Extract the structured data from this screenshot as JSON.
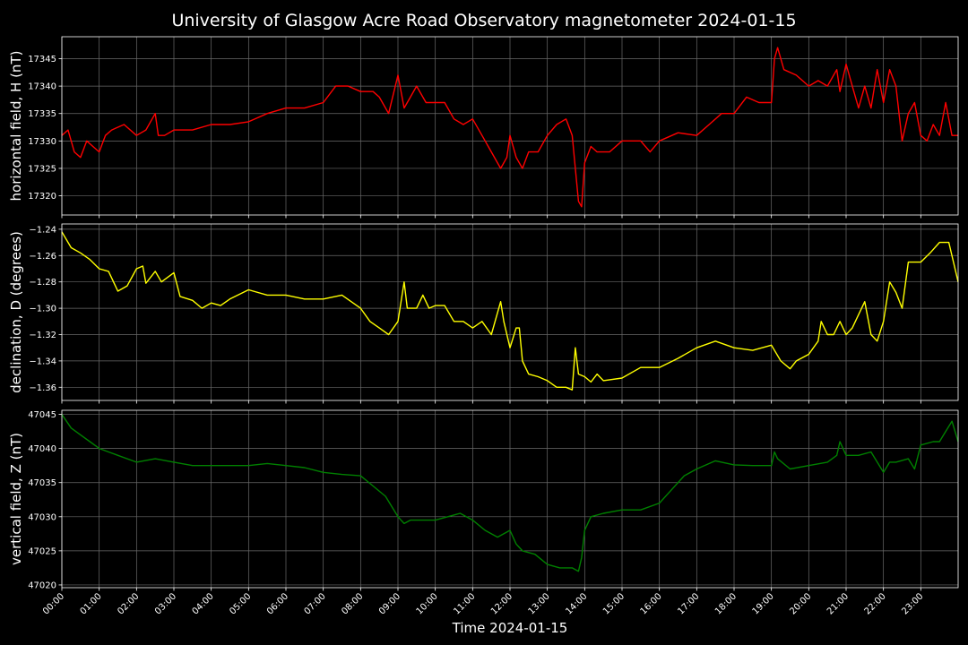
{
  "chart_data": {
    "type": "line",
    "title": "University of Glasgow Acre Road Observatory magnetometer 2024-01-15",
    "xlabel": "Time 2024-01-15",
    "x_ticks": [
      "00:00",
      "01:00",
      "02:00",
      "03:00",
      "04:00",
      "05:00",
      "06:00",
      "07:00",
      "08:00",
      "09:00",
      "10:00",
      "11:00",
      "12:00",
      "13:00",
      "14:00",
      "15:00",
      "16:00",
      "17:00",
      "18:00",
      "19:00",
      "20:00",
      "21:00",
      "22:00",
      "23:00"
    ],
    "xlim": [
      "00:00",
      "24:00"
    ],
    "background": "#000000",
    "grid": true,
    "panels": [
      {
        "ylabel": "horizontal field, H (nT)",
        "color": "#ff0000",
        "ylim": [
          17316.5,
          17349
        ],
        "yticks": [
          17320,
          17325,
          17330,
          17335,
          17340,
          17345
        ],
        "series": [
          {
            "x": [
              "00:00",
              "00:10",
              "00:20",
              "00:30",
              "00:40",
              "00:50",
              "01:00",
              "01:10",
              "01:20",
              "01:40",
              "02:00",
              "02:15",
              "02:30",
              "02:35",
              "02:45",
              "03:00",
              "03:30",
              "04:00",
              "04:30",
              "05:00",
              "05:30",
              "06:00",
              "06:30",
              "07:00",
              "07:20",
              "07:40",
              "08:00",
              "08:20",
              "08:30",
              "08:45",
              "09:00",
              "09:10",
              "09:20",
              "09:30",
              "09:45",
              "10:00",
              "10:15",
              "10:30",
              "10:45",
              "11:00",
              "11:15",
              "11:30",
              "11:45",
              "11:55",
              "12:00",
              "12:10",
              "12:20",
              "12:30",
              "12:45",
              "13:00",
              "13:15",
              "13:30",
              "13:40",
              "13:50",
              "13:55",
              "14:00",
              "14:10",
              "14:20",
              "14:40",
              "15:00",
              "15:30",
              "15:45",
              "16:00",
              "16:30",
              "17:00",
              "17:20",
              "17:40",
              "18:00",
              "18:20",
              "18:40",
              "19:00",
              "19:05",
              "19:10",
              "19:20",
              "19:40",
              "20:00",
              "20:15",
              "20:30",
              "20:45",
              "20:50",
              "21:00",
              "21:10",
              "21:20",
              "21:30",
              "21:40",
              "21:50",
              "22:00",
              "22:10",
              "22:20",
              "22:30",
              "22:40",
              "22:50",
              "23:00",
              "23:10",
              "23:20",
              "23:30",
              "23:40",
              "23:50",
              "24:00"
            ],
            "y": [
              17331,
              17332,
              17328,
              17327,
              17330,
              17329,
              17328,
              17331,
              17332,
              17333,
              17331,
              17332,
              17335,
              17331,
              17331,
              17332,
              17332,
              17333,
              17333,
              17333.5,
              17335,
              17336,
              17336,
              17337,
              17340,
              17340,
              17339,
              17339,
              17338,
              17335,
              17342,
              17336,
              17338,
              17340,
              17337,
              17337,
              17337,
              17334,
              17333,
              17334,
              17331,
              17328,
              17325,
              17327,
              17331,
              17327,
              17325,
              17328,
              17328,
              17331,
              17333,
              17334,
              17331,
              17319,
              17318,
              17326,
              17329,
              17328,
              17328,
              17330,
              17330,
              17328,
              17330,
              17331.5,
              17331,
              17333,
              17335,
              17335,
              17338,
              17337,
              17337,
              17345,
              17347,
              17343,
              17342,
              17340,
              17341,
              17340,
              17343,
              17339,
              17344,
              17340,
              17336,
              17340,
              17336,
              17343,
              17337,
              17343,
              17340,
              17330,
              17335,
              17337,
              17331,
              17330,
              17333,
              17331,
              17337,
              17331,
              17331
            ]
          }
        ]
      },
      {
        "ylabel": "declination, D (degrees)",
        "color": "#ffff00",
        "ylim": [
          -1.37,
          -1.236
        ],
        "yticks": [
          -1.36,
          -1.34,
          -1.32,
          -1.3,
          -1.28,
          -1.26,
          -1.24
        ],
        "series": [
          {
            "x": [
              "00:00",
              "00:15",
              "00:30",
              "00:45",
              "01:00",
              "01:15",
              "01:30",
              "01:45",
              "02:00",
              "02:10",
              "02:15",
              "02:30",
              "02:40",
              "03:00",
              "03:10",
              "03:30",
              "03:45",
              "04:00",
              "04:15",
              "04:30",
              "05:00",
              "05:30",
              "06:00",
              "06:30",
              "07:00",
              "07:30",
              "08:00",
              "08:15",
              "08:30",
              "08:45",
              "09:00",
              "09:10",
              "09:15",
              "09:30",
              "09:40",
              "09:50",
              "10:00",
              "10:15",
              "10:30",
              "10:45",
              "11:00",
              "11:15",
              "11:30",
              "11:45",
              "11:50",
              "12:00",
              "12:10",
              "12:15",
              "12:20",
              "12:30",
              "12:45",
              "13:00",
              "13:15",
              "13:30",
              "13:40",
              "13:45",
              "13:50",
              "14:00",
              "14:10",
              "14:20",
              "14:30",
              "15:00",
              "15:30",
              "16:00",
              "16:30",
              "17:00",
              "17:30",
              "18:00",
              "18:30",
              "19:00",
              "19:15",
              "19:30",
              "19:40",
              "20:00",
              "20:15",
              "20:20",
              "20:30",
              "20:40",
              "20:50",
              "21:00",
              "21:10",
              "21:30",
              "21:40",
              "21:50",
              "22:00",
              "22:10",
              "22:20",
              "22:30",
              "22:40",
              "23:00",
              "23:15",
              "23:30",
              "23:45",
              "24:00"
            ],
            "y": [
              -1.242,
              -1.254,
              -1.258,
              -1.263,
              -1.27,
              -1.272,
              -1.287,
              -1.283,
              -1.27,
              -1.268,
              -1.281,
              -1.272,
              -1.28,
              -1.273,
              -1.291,
              -1.294,
              -1.3,
              -1.296,
              -1.298,
              -1.293,
              -1.286,
              -1.29,
              -1.29,
              -1.293,
              -1.293,
              -1.29,
              -1.3,
              -1.31,
              -1.315,
              -1.32,
              -1.31,
              -1.28,
              -1.3,
              -1.3,
              -1.29,
              -1.3,
              -1.298,
              -1.298,
              -1.31,
              -1.31,
              -1.315,
              -1.31,
              -1.32,
              -1.295,
              -1.31,
              -1.33,
              -1.315,
              -1.315,
              -1.34,
              -1.35,
              -1.352,
              -1.355,
              -1.36,
              -1.36,
              -1.362,
              -1.33,
              -1.35,
              -1.352,
              -1.356,
              -1.35,
              -1.355,
              -1.353,
              -1.345,
              -1.345,
              -1.338,
              -1.33,
              -1.325,
              -1.33,
              -1.332,
              -1.328,
              -1.34,
              -1.346,
              -1.34,
              -1.335,
              -1.325,
              -1.31,
              -1.32,
              -1.32,
              -1.31,
              -1.32,
              -1.315,
              -1.295,
              -1.32,
              -1.325,
              -1.31,
              -1.28,
              -1.288,
              -1.3,
              -1.265,
              -1.265,
              -1.258,
              -1.25,
              -1.25,
              -1.28
            ]
          }
        ]
      },
      {
        "ylabel": "vertical field, Z (nT)",
        "color": "#008000",
        "ylim": [
          47019.6,
          47045.6
        ],
        "yticks": [
          47020,
          47025,
          47030,
          47035,
          47040,
          47045
        ],
        "series": [
          {
            "x": [
              "00:00",
              "00:15",
              "00:30",
              "00:45",
              "01:00",
              "01:15",
              "01:30",
              "02:00",
              "02:30",
              "03:00",
              "03:30",
              "04:00",
              "04:30",
              "05:00",
              "05:30",
              "06:00",
              "06:30",
              "07:00",
              "07:30",
              "08:00",
              "08:20",
              "08:40",
              "09:00",
              "09:10",
              "09:20",
              "09:40",
              "10:00",
              "10:20",
              "10:40",
              "11:00",
              "11:20",
              "11:40",
              "12:00",
              "12:10",
              "12:20",
              "12:40",
              "13:00",
              "13:20",
              "13:40",
              "13:50",
              "13:55",
              "14:00",
              "14:10",
              "14:30",
              "15:00",
              "15:30",
              "16:00",
              "16:20",
              "16:40",
              "17:00",
              "17:30",
              "18:00",
              "18:30",
              "19:00",
              "19:05",
              "19:10",
              "19:30",
              "20:00",
              "20:30",
              "20:45",
              "20:50",
              "21:00",
              "21:20",
              "21:40",
              "22:00",
              "22:10",
              "22:20",
              "22:40",
              "22:50",
              "23:00",
              "23:20",
              "23:30",
              "23:40",
              "23:50",
              "24:00"
            ],
            "y": [
              47045,
              47043,
              47042,
              47041,
              47040,
              47039.5,
              47039,
              47038,
              47038.5,
              47038,
              47037.5,
              47037.5,
              47037.5,
              47037.5,
              47037.8,
              47037.5,
              47037.2,
              47036.5,
              47036.2,
              47036,
              47034.5,
              47033,
              47030,
              47029,
              47029.5,
              47029.5,
              47029.5,
              47030,
              47030.5,
              47029.5,
              47028,
              47027,
              47028,
              47026,
              47025,
              47024.5,
              47023,
              47022.5,
              47022.5,
              47022,
              47024,
              47028,
              47030,
              47030.5,
              47031,
              47031,
              47032,
              47034,
              47036,
              47037,
              47038.2,
              47037.6,
              47037.5,
              47037.5,
              47039.5,
              47038.5,
              47037,
              47037.5,
              47038,
              47039,
              47041,
              47039,
              47039,
              47039.5,
              47036.5,
              47038,
              47038,
              47038.5,
              47037,
              47040.5,
              47041,
              47041,
              47042.5,
              47044,
              47041
            ]
          }
        ]
      }
    ]
  }
}
